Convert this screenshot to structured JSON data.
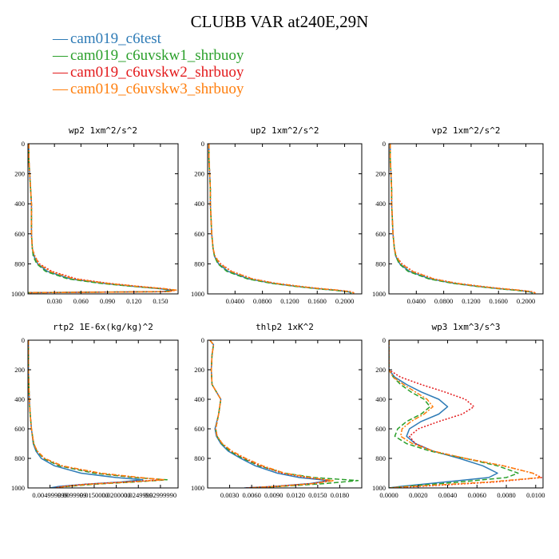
{
  "figure": {
    "title": "CLUBB VAR at240E,29N",
    "legend": [
      {
        "label": "cam019_c6test",
        "color": "#2e7bb6"
      },
      {
        "label": "cam019_c6uvskw1_shrbuoy",
        "color": "#2ca02c"
      },
      {
        "label": "cam019_c6uvskw2_shrbuoy",
        "color": "#e31a1c"
      },
      {
        "label": "cam019_c6uvskw3_shrbuoy",
        "color": "#ff7f0e"
      }
    ],
    "legend_dash": "—"
  },
  "colors": {
    "cam019_c6test": "#2e7bb6",
    "cam019_c6uvskw1_shrbuoy": "#2ca02c",
    "cam019_c6uvskw2_shrbuoy": "#e31a1c",
    "cam019_c6uvskw3_shrbuoy": "#ff7f0e"
  },
  "chart_data": [
    {
      "type": "line",
      "title": "wp2  1xm^2/s^2",
      "xlim": [
        0,
        0.17
      ],
      "ylim": [
        1000,
        0
      ],
      "xticks": [
        0.03,
        0.06,
        0.09,
        0.12,
        0.15
      ],
      "xtick_labels": [
        "0.030",
        "0.060",
        "0.090",
        "0.120",
        "0.150"
      ],
      "yticks": [
        0,
        200,
        400,
        600,
        800,
        1000
      ],
      "ytick_labels": [
        "0",
        "200",
        "400",
        "600",
        "800",
        "1000"
      ],
      "y": [
        0,
        100,
        200,
        300,
        400,
        500,
        600,
        700,
        750,
        800,
        850,
        900,
        930,
        950,
        965,
        975,
        985,
        992
      ],
      "series": [
        {
          "name": "cam019_c6test",
          "x": [
            0.001,
            0.001,
            0.002,
            0.003,
            0.004,
            0.004,
            0.004,
            0.005,
            0.007,
            0.011,
            0.022,
            0.048,
            0.085,
            0.12,
            0.148,
            0.162,
            0.152,
            0.0
          ]
        },
        {
          "name": "cam019_c6uvskw1_shrbuoy",
          "x": [
            0.001,
            0.001,
            0.002,
            0.003,
            0.004,
            0.004,
            0.004,
            0.005,
            0.006,
            0.01,
            0.02,
            0.045,
            0.082,
            0.118,
            0.15,
            0.164,
            0.155,
            0.0
          ]
        },
        {
          "name": "cam019_c6uvskw2_shrbuoy",
          "x": [
            0.001,
            0.001,
            0.002,
            0.003,
            0.004,
            0.004,
            0.004,
            0.005,
            0.008,
            0.013,
            0.027,
            0.055,
            0.092,
            0.126,
            0.153,
            0.167,
            0.158,
            0.0
          ]
        },
        {
          "name": "cam019_c6uvskw3_shrbuoy",
          "x": [
            0.001,
            0.001,
            0.002,
            0.003,
            0.004,
            0.004,
            0.004,
            0.005,
            0.008,
            0.012,
            0.025,
            0.052,
            0.09,
            0.124,
            0.154,
            0.168,
            0.16,
            0.0
          ]
        }
      ]
    },
    {
      "type": "line",
      "title": "up2  1xm^2/s^2",
      "xlim": [
        0,
        0.225
      ],
      "ylim": [
        1000,
        0
      ],
      "xticks": [
        0.04,
        0.08,
        0.12,
        0.16,
        0.2
      ],
      "xtick_labels": [
        "0.0400",
        "0.0800",
        "0.1200",
        "0.1600",
        "0.2000"
      ],
      "yticks": [
        0,
        200,
        400,
        600,
        800,
        1000
      ],
      "ytick_labels": [
        "0",
        "200",
        "400",
        "600",
        "800",
        "1000"
      ],
      "y": [
        0,
        100,
        200,
        300,
        400,
        500,
        600,
        700,
        750,
        800,
        850,
        900,
        930,
        950,
        965,
        975,
        985,
        995
      ],
      "series": [
        {
          "name": "cam019_c6test",
          "x": [
            0.002,
            0.002,
            0.003,
            0.004,
            0.004,
            0.005,
            0.006,
            0.008,
            0.01,
            0.016,
            0.03,
            0.06,
            0.095,
            0.13,
            0.16,
            0.185,
            0.205,
            0.21
          ]
        },
        {
          "name": "cam019_c6uvskw1_shrbuoy",
          "x": [
            0.002,
            0.002,
            0.003,
            0.004,
            0.004,
            0.005,
            0.006,
            0.008,
            0.01,
            0.015,
            0.028,
            0.058,
            0.093,
            0.128,
            0.158,
            0.183,
            0.204,
            0.21
          ]
        },
        {
          "name": "cam019_c6uvskw2_shrbuoy",
          "x": [
            0.002,
            0.002,
            0.003,
            0.004,
            0.004,
            0.005,
            0.006,
            0.008,
            0.011,
            0.019,
            0.035,
            0.066,
            0.1,
            0.135,
            0.165,
            0.19,
            0.209,
            0.215
          ]
        },
        {
          "name": "cam019_c6uvskw3_shrbuoy",
          "x": [
            0.002,
            0.002,
            0.003,
            0.004,
            0.004,
            0.005,
            0.006,
            0.008,
            0.011,
            0.018,
            0.034,
            0.065,
            0.099,
            0.134,
            0.164,
            0.189,
            0.208,
            0.214
          ]
        }
      ]
    },
    {
      "type": "line",
      "title": "vp2  1xm^2/s^2",
      "xlim": [
        0,
        0.225
      ],
      "ylim": [
        1000,
        0
      ],
      "xticks": [
        0.04,
        0.08,
        0.12,
        0.16,
        0.2
      ],
      "xtick_labels": [
        "0.0400",
        "0.0800",
        "0.1200",
        "0.1600",
        "0.2000"
      ],
      "yticks": [
        0,
        200,
        400,
        600,
        800,
        1000
      ],
      "ytick_labels": [
        "0",
        "200",
        "400",
        "600",
        "800",
        "1000"
      ],
      "y": [
        0,
        100,
        200,
        300,
        400,
        500,
        600,
        700,
        750,
        800,
        850,
        900,
        930,
        950,
        965,
        975,
        985,
        995
      ],
      "series": [
        {
          "name": "cam019_c6test",
          "x": [
            0.002,
            0.002,
            0.003,
            0.004,
            0.004,
            0.005,
            0.006,
            0.008,
            0.01,
            0.016,
            0.03,
            0.06,
            0.095,
            0.13,
            0.16,
            0.185,
            0.205,
            0.21
          ]
        },
        {
          "name": "cam019_c6uvskw1_shrbuoy",
          "x": [
            0.002,
            0.002,
            0.003,
            0.004,
            0.004,
            0.005,
            0.006,
            0.008,
            0.01,
            0.015,
            0.028,
            0.058,
            0.093,
            0.128,
            0.158,
            0.183,
            0.204,
            0.21
          ]
        },
        {
          "name": "cam019_c6uvskw2_shrbuoy",
          "x": [
            0.002,
            0.002,
            0.003,
            0.004,
            0.004,
            0.005,
            0.006,
            0.008,
            0.011,
            0.019,
            0.035,
            0.066,
            0.1,
            0.135,
            0.165,
            0.19,
            0.209,
            0.215
          ]
        },
        {
          "name": "cam019_c6uvskw3_shrbuoy",
          "x": [
            0.002,
            0.002,
            0.003,
            0.004,
            0.004,
            0.005,
            0.006,
            0.008,
            0.011,
            0.018,
            0.034,
            0.065,
            0.099,
            0.134,
            0.164,
            0.189,
            0.208,
            0.214
          ]
        }
      ]
    },
    {
      "type": "line",
      "title": "rtp2  1E-6x(kg/kg)^2",
      "xlim": [
        0,
        0.034
      ],
      "ylim": [
        1000,
        0
      ],
      "xticks": [
        0.005,
        0.01,
        0.015,
        0.02,
        0.025,
        0.03
      ],
      "xtick_labels": [
        "0.004999999",
        "0.0099999",
        "0.0150000",
        "0.0200000",
        "0.0249999",
        "0.02999990"
      ],
      "yticks": [
        0,
        200,
        400,
        600,
        800,
        1000
      ],
      "ytick_labels": [
        "0",
        "200",
        "400",
        "600",
        "800",
        "1000"
      ],
      "y": [
        0,
        100,
        200,
        300,
        400,
        500,
        600,
        700,
        750,
        800,
        850,
        900,
        930,
        945,
        960,
        975,
        990,
        1000
      ],
      "series": [
        {
          "name": "cam019_c6test",
          "x": [
            0.0001,
            0.0001,
            0.0001,
            0.0002,
            0.0003,
            0.0005,
            0.0008,
            0.0012,
            0.0018,
            0.003,
            0.006,
            0.012,
            0.02,
            0.026,
            0.021,
            0.013,
            0.007,
            0.005
          ]
        },
        {
          "name": "cam019_c6uvskw1_shrbuoy",
          "x": [
            0.0001,
            0.0001,
            0.0001,
            0.0002,
            0.0003,
            0.0005,
            0.0008,
            0.0013,
            0.002,
            0.0035,
            0.007,
            0.015,
            0.024,
            0.0315,
            0.024,
            0.015,
            0.009,
            0.007
          ]
        },
        {
          "name": "cam019_c6uvskw2_shrbuoy",
          "x": [
            0.0001,
            0.0001,
            0.0001,
            0.0002,
            0.0003,
            0.0005,
            0.0008,
            0.0013,
            0.0021,
            0.0037,
            0.0075,
            0.016,
            0.025,
            0.0305,
            0.022,
            0.013,
            0.008,
            0.006
          ]
        },
        {
          "name": "cam019_c6uvskw3_shrbuoy",
          "x": [
            0.0001,
            0.0001,
            0.0001,
            0.0002,
            0.0003,
            0.0005,
            0.0008,
            0.0013,
            0.0021,
            0.0038,
            0.0078,
            0.0165,
            0.0255,
            0.031,
            0.023,
            0.014,
            0.0085,
            0.0065
          ]
        }
      ]
    },
    {
      "type": "line",
      "title": "thlp2  1xK^2",
      "xlim": [
        0,
        0.021
      ],
      "ylim": [
        1000,
        0
      ],
      "xticks": [
        0.003,
        0.006,
        0.009,
        0.012,
        0.015,
        0.018
      ],
      "xtick_labels": [
        "0.0030",
        "0.0060",
        "0.0090",
        "0.0120",
        "0.0150",
        "0.0180"
      ],
      "yticks": [
        0,
        200,
        400,
        600,
        800,
        1000
      ],
      "ytick_labels": [
        "0",
        "200",
        "400",
        "600",
        "800",
        "1000"
      ],
      "y": [
        0,
        30,
        100,
        200,
        300,
        350,
        400,
        500,
        600,
        650,
        700,
        750,
        800,
        850,
        900,
        930,
        950,
        970,
        990,
        1000
      ],
      "series": [
        {
          "name": "cam019_c6test",
          "x": [
            0.0003,
            0.0008,
            0.0006,
            0.0005,
            0.0006,
            0.0012,
            0.0018,
            0.0015,
            0.001,
            0.0012,
            0.0018,
            0.0028,
            0.0045,
            0.0065,
            0.0095,
            0.0125,
            0.0165,
            0.014,
            0.009,
            0.005
          ]
        },
        {
          "name": "cam019_c6uvskw1_shrbuoy",
          "x": [
            0.0003,
            0.0008,
            0.0006,
            0.0005,
            0.0006,
            0.0012,
            0.0018,
            0.0015,
            0.0011,
            0.0013,
            0.0019,
            0.003,
            0.0048,
            0.007,
            0.0105,
            0.0145,
            0.0205,
            0.016,
            0.01,
            0.006
          ]
        },
        {
          "name": "cam019_c6uvskw2_shrbuoy",
          "x": [
            0.0003,
            0.0008,
            0.0006,
            0.0005,
            0.0006,
            0.0012,
            0.0018,
            0.0015,
            0.0011,
            0.0013,
            0.002,
            0.0032,
            0.005,
            0.0072,
            0.0102,
            0.0135,
            0.0168,
            0.0142,
            0.0092,
            0.0052
          ]
        },
        {
          "name": "cam019_c6uvskw3_shrbuoy",
          "x": [
            0.0003,
            0.0008,
            0.0006,
            0.0005,
            0.0006,
            0.0012,
            0.0018,
            0.0015,
            0.0011,
            0.0013,
            0.002,
            0.0033,
            0.0052,
            0.0075,
            0.0105,
            0.014,
            0.0172,
            0.0146,
            0.0095,
            0.0055
          ]
        }
      ]
    },
    {
      "type": "line",
      "title": "wp3  1xm^3/s^3",
      "xlim": [
        0,
        0.0105
      ],
      "ylim": [
        1000,
        0
      ],
      "xticks": [
        0,
        0.002,
        0.004,
        0.006,
        0.008,
        0.01
      ],
      "xtick_labels": [
        "0.0000",
        "0.0020",
        "0.0040",
        "0.0060",
        "0.0080",
        "0.0100"
      ],
      "yticks": [
        0,
        200,
        400,
        600,
        800,
        1000
      ],
      "ytick_labels": [
        "0",
        "200",
        "400",
        "600",
        "800",
        "1000"
      ],
      "y": [
        0,
        100,
        200,
        250,
        300,
        350,
        400,
        450,
        500,
        550,
        600,
        650,
        700,
        750,
        800,
        850,
        900,
        930,
        960,
        990,
        1000
      ],
      "series": [
        {
          "name": "cam019_c6test",
          "x": [
            0.0,
            0.0,
            0.0,
            0.0004,
            0.0012,
            0.0022,
            0.0034,
            0.004,
            0.0034,
            0.0022,
            0.0014,
            0.0012,
            0.0018,
            0.003,
            0.0048,
            0.0064,
            0.0074,
            0.0068,
            0.0038,
            0.0008,
            0.0
          ]
        },
        {
          "name": "cam019_c6uvskw1_shrbuoy",
          "x": [
            0.0,
            0.0,
            0.0,
            0.0003,
            0.0008,
            0.0015,
            0.0024,
            0.0028,
            0.0022,
            0.0012,
            0.0006,
            0.0004,
            0.0012,
            0.0028,
            0.0052,
            0.0074,
            0.0088,
            0.008,
            0.0048,
            0.0012,
            0.0
          ]
        },
        {
          "name": "cam019_c6uvskw2_shrbuoy",
          "x": [
            0.0,
            0.0,
            0.0,
            0.0008,
            0.0022,
            0.0038,
            0.0052,
            0.0058,
            0.005,
            0.0034,
            0.002,
            0.0014,
            0.0018,
            0.003,
            0.0052,
            0.0078,
            0.0098,
            0.0104,
            0.0072,
            0.002,
            0.0
          ]
        },
        {
          "name": "cam019_c6uvskw3_shrbuoy",
          "x": [
            0.0,
            0.0,
            0.0,
            0.0003,
            0.001,
            0.0018,
            0.0026,
            0.003,
            0.0024,
            0.0015,
            0.0009,
            0.0008,
            0.0016,
            0.003,
            0.0052,
            0.0078,
            0.0098,
            0.0103,
            0.0068,
            0.0016,
            0.0
          ]
        }
      ]
    }
  ]
}
